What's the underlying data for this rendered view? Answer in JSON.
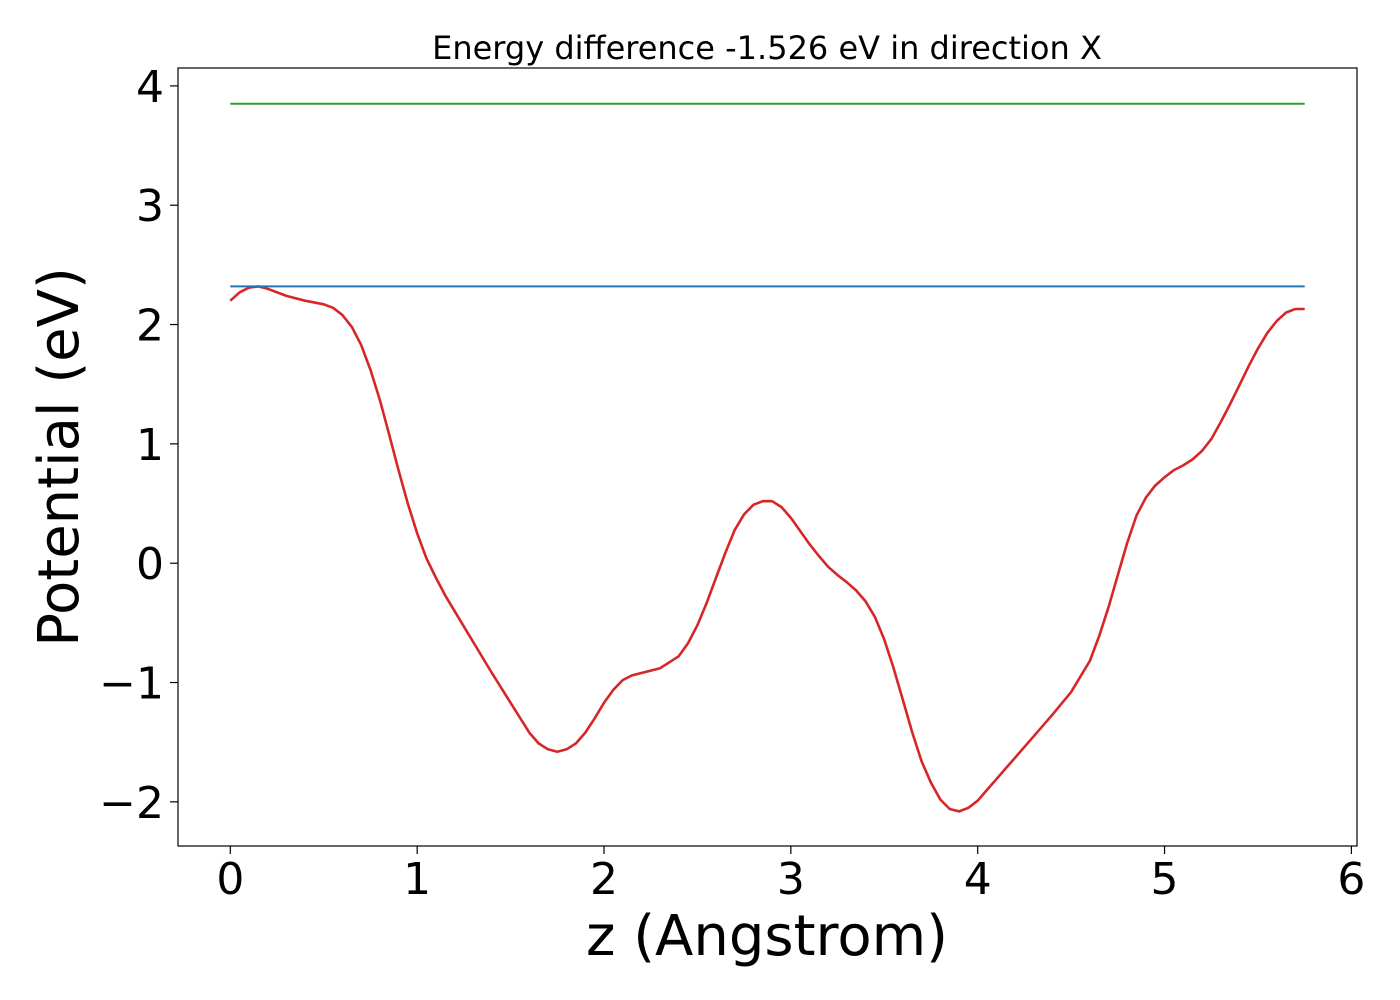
{
  "chart_data": {
    "type": "line",
    "title": "Energy difference -1.526 eV in direction X",
    "xlabel": "z (Angstrom)",
    "ylabel": "Potential (eV)",
    "xlim": [
      -0.28,
      6.03
    ],
    "ylim": [
      -2.37,
      4.15
    ],
    "xticks": [
      0,
      1,
      2,
      3,
      4,
      5,
      6
    ],
    "yticks": [
      -2,
      -1,
      0,
      1,
      2,
      3,
      4
    ],
    "grid": false,
    "series": [
      {
        "color": "#d62728",
        "x": [
          0.0,
          0.05,
          0.1,
          0.15,
          0.2,
          0.3,
          0.4,
          0.5,
          0.55,
          0.6,
          0.65,
          0.7,
          0.75,
          0.8,
          0.85,
          0.9,
          0.95,
          1.0,
          1.05,
          1.1,
          1.15,
          1.2,
          1.3,
          1.4,
          1.5,
          1.6,
          1.65,
          1.7,
          1.75,
          1.8,
          1.85,
          1.9,
          1.95,
          2.0,
          2.05,
          2.1,
          2.15,
          2.2,
          2.3,
          2.4,
          2.45,
          2.5,
          2.55,
          2.6,
          2.65,
          2.7,
          2.75,
          2.8,
          2.85,
          2.9,
          2.95,
          3.0,
          3.05,
          3.1,
          3.15,
          3.2,
          3.25,
          3.3,
          3.35,
          3.4,
          3.45,
          3.5,
          3.55,
          3.6,
          3.65,
          3.7,
          3.75,
          3.8,
          3.85,
          3.9,
          3.95,
          4.0,
          4.05,
          4.1,
          4.15,
          4.2,
          4.3,
          4.4,
          4.5,
          4.6,
          4.65,
          4.7,
          4.75,
          4.8,
          4.85,
          4.9,
          4.95,
          5.0,
          5.05,
          5.1,
          5.15,
          5.2,
          5.25,
          5.3,
          5.35,
          5.4,
          5.45,
          5.5,
          5.55,
          5.6,
          5.65,
          5.7,
          5.75
        ],
        "y": [
          2.2,
          2.27,
          2.31,
          2.32,
          2.3,
          2.24,
          2.2,
          2.17,
          2.14,
          2.08,
          1.98,
          1.83,
          1.62,
          1.37,
          1.08,
          0.78,
          0.5,
          0.25,
          0.04,
          -0.12,
          -0.27,
          -0.4,
          -0.66,
          -0.92,
          -1.17,
          -1.42,
          -1.51,
          -1.56,
          -1.58,
          -1.56,
          -1.51,
          -1.42,
          -1.3,
          -1.17,
          -1.06,
          -0.98,
          -0.94,
          -0.92,
          -0.88,
          -0.78,
          -0.67,
          -0.52,
          -0.33,
          -0.12,
          0.09,
          0.28,
          0.41,
          0.49,
          0.52,
          0.52,
          0.47,
          0.38,
          0.27,
          0.16,
          0.06,
          -0.03,
          -0.1,
          -0.16,
          -0.23,
          -0.32,
          -0.45,
          -0.64,
          -0.88,
          -1.15,
          -1.42,
          -1.66,
          -1.84,
          -1.98,
          -2.06,
          -2.08,
          -2.05,
          -1.99,
          -1.9,
          -1.81,
          -1.72,
          -1.63,
          -1.45,
          -1.27,
          -1.08,
          -0.82,
          -0.61,
          -0.37,
          -0.1,
          0.17,
          0.4,
          0.55,
          0.65,
          0.72,
          0.78,
          0.82,
          0.87,
          0.94,
          1.04,
          1.18,
          1.33,
          1.49,
          1.65,
          1.8,
          1.93,
          2.03,
          2.1,
          2.13,
          2.13
        ]
      },
      {
        "color": "#1f77b4",
        "x": [
          0.0,
          5.75
        ],
        "y": [
          2.32,
          2.32
        ]
      },
      {
        "color": "#2ca02c",
        "x": [
          0.0,
          5.75
        ],
        "y": [
          3.85,
          3.85
        ]
      }
    ]
  }
}
